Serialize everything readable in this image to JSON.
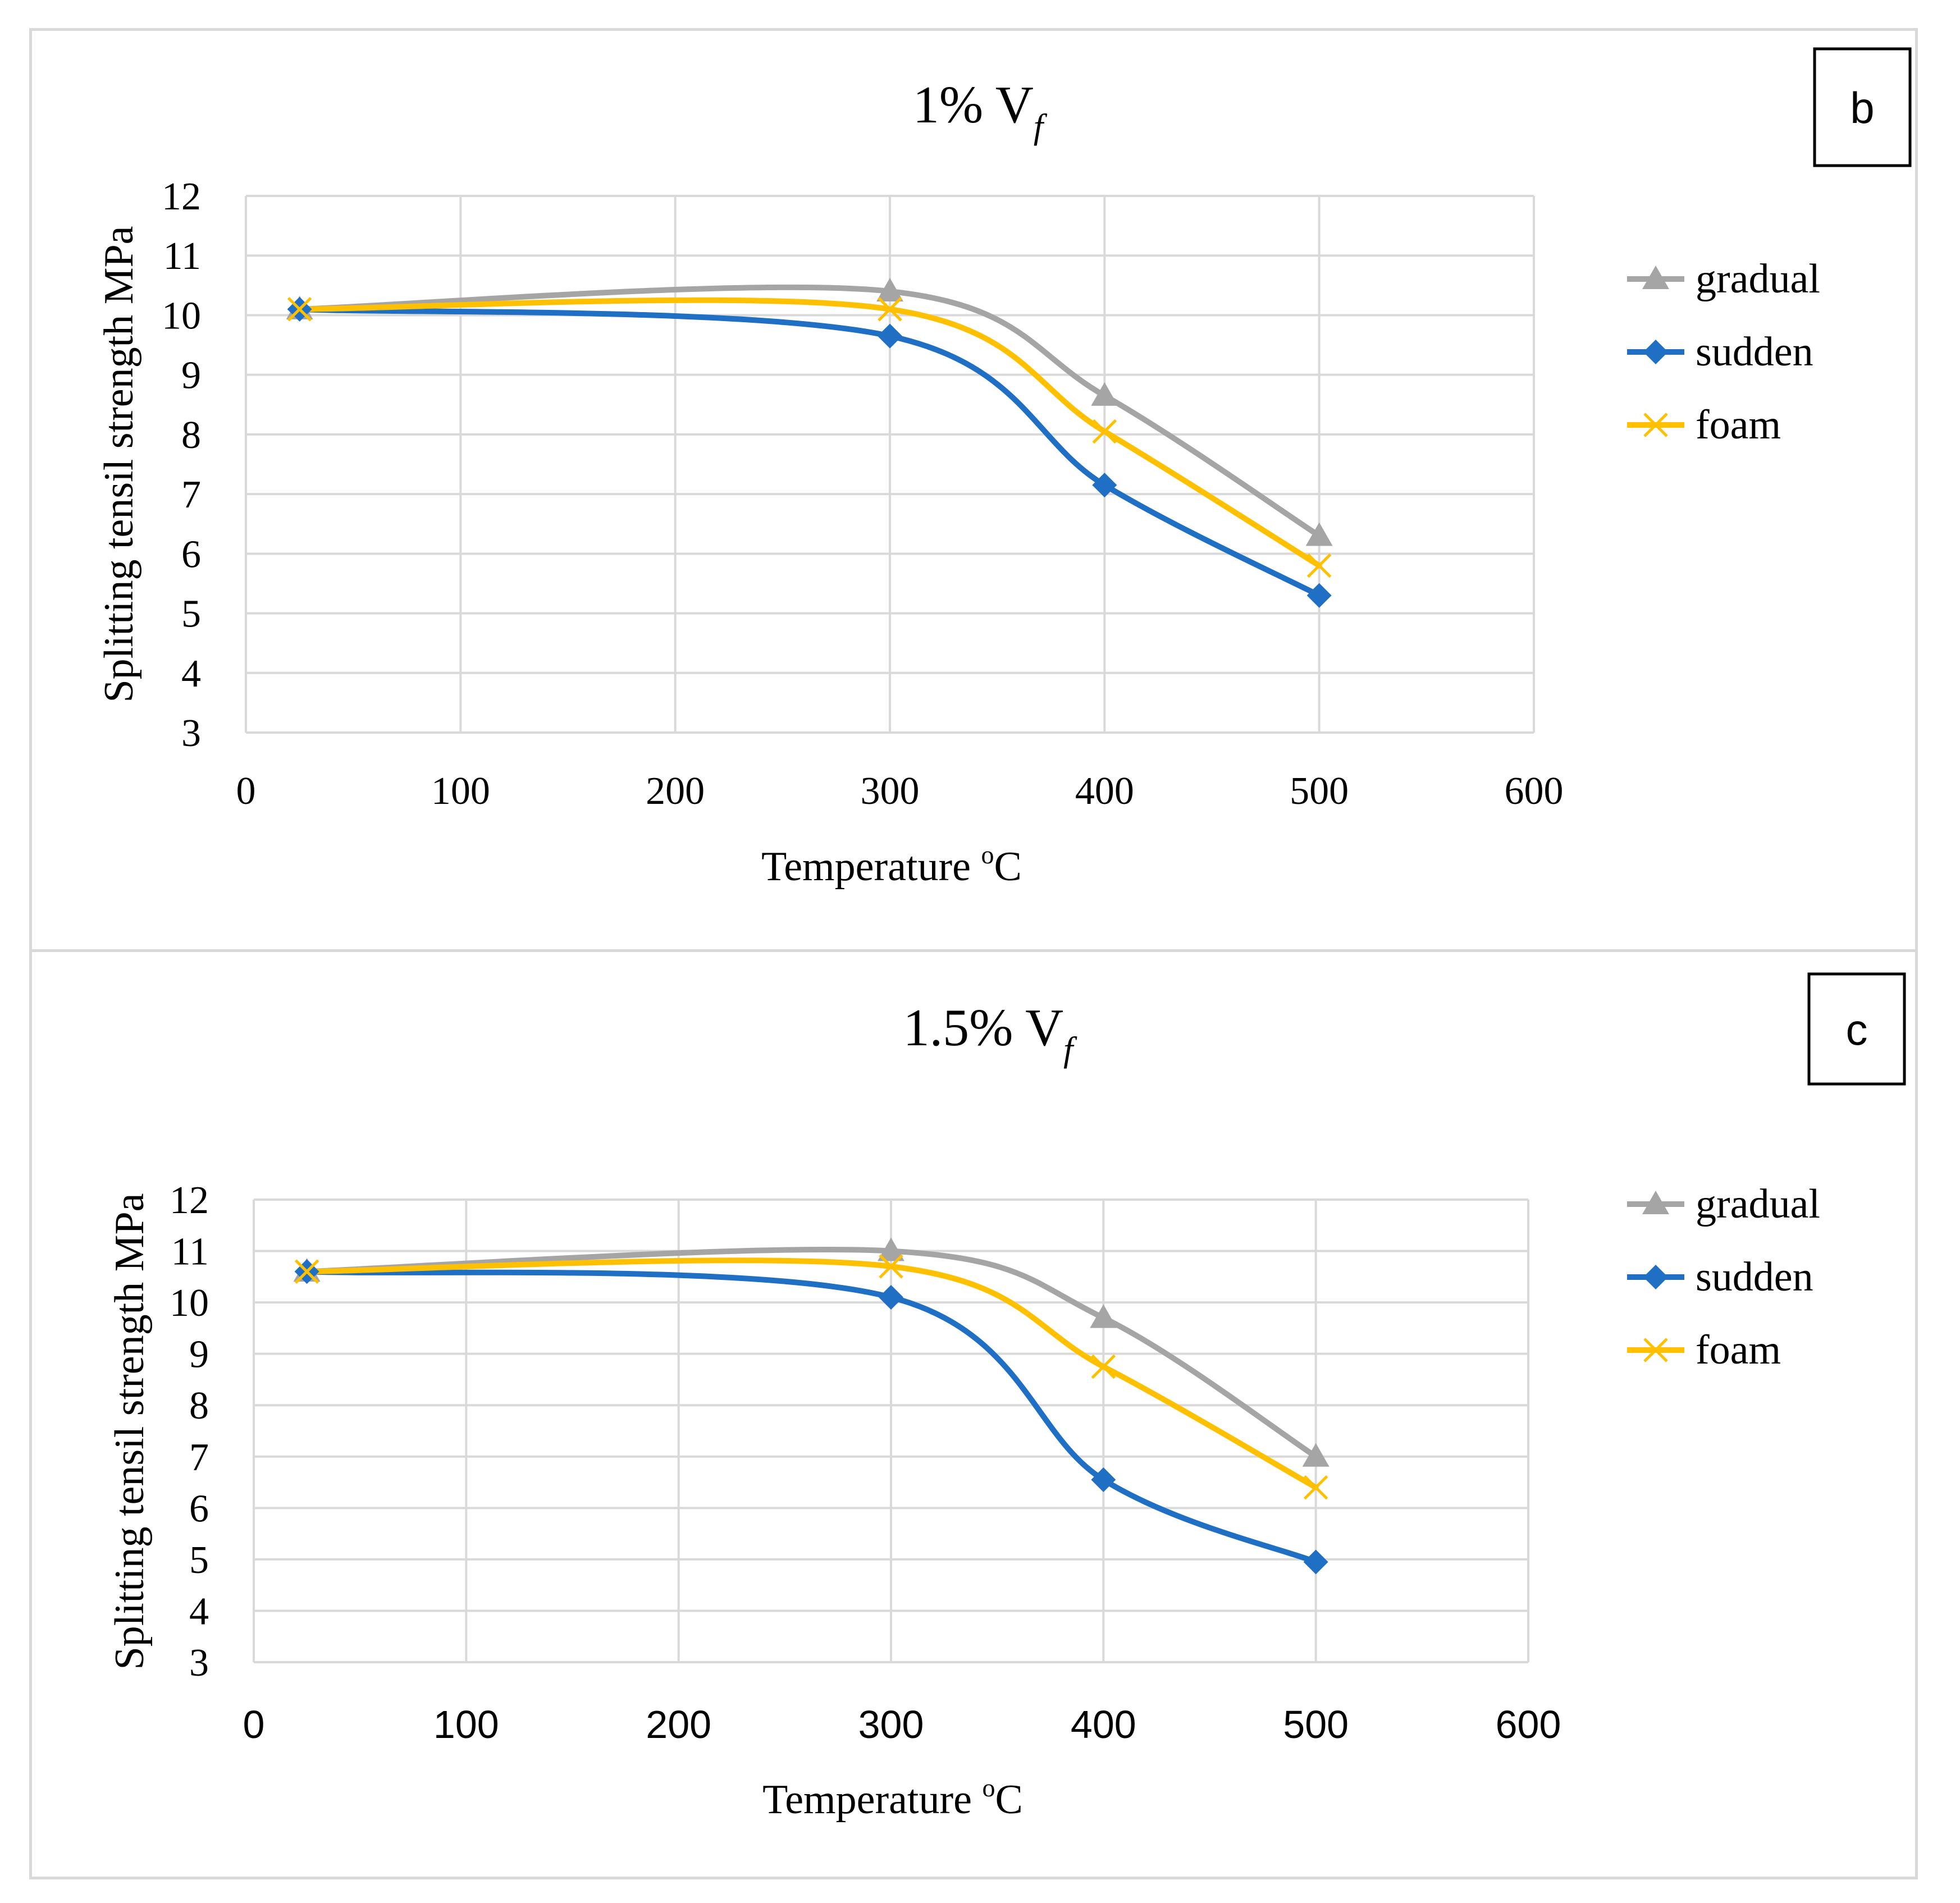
{
  "colors": {
    "gradual": "#a5a5a5",
    "sudden": "#1f6fc5",
    "foam": "#ffc000",
    "grid": "#d9d9d9"
  },
  "chart_data": [
    {
      "type": "line",
      "panel_label": "b",
      "title": "1% V",
      "title_sub": "f",
      "xlabel": "Temperature",
      "xlabel_sup": "o",
      "xlabel_unit": "C",
      "ylabel": "Splitting tensil strength MPa",
      "xlim": [
        0,
        600
      ],
      "ylim": [
        3,
        12
      ],
      "xticks": [
        0,
        100,
        200,
        300,
        400,
        500,
        600
      ],
      "yticks": [
        3,
        4,
        5,
        6,
        7,
        8,
        9,
        10,
        11,
        12
      ],
      "tick_font": "serif",
      "x": [
        25,
        300,
        400,
        500
      ],
      "series": [
        {
          "name": "gradual",
          "marker": "triangle",
          "values": [
            10.1,
            10.4,
            8.65,
            6.3
          ]
        },
        {
          "name": "sudden",
          "marker": "diamond",
          "values": [
            10.1,
            9.65,
            7.15,
            5.3
          ]
        },
        {
          "name": "foam",
          "marker": "x",
          "values": [
            10.1,
            10.1,
            8.05,
            5.8
          ]
        }
      ]
    },
    {
      "type": "line",
      "panel_label": "c",
      "title": "1.5% V",
      "title_sub": "f",
      "xlabel": "Temperature",
      "xlabel_sup": "o",
      "xlabel_unit": "C",
      "ylabel": "Splitting tensil strength MPa",
      "xlim": [
        0,
        600
      ],
      "ylim": [
        3,
        12
      ],
      "xticks": [
        0,
        100,
        200,
        300,
        400,
        500,
        600
      ],
      "yticks": [
        3,
        4,
        5,
        6,
        7,
        8,
        9,
        10,
        11,
        12
      ],
      "tick_font": "sans",
      "x": [
        25,
        300,
        400,
        500
      ],
      "series": [
        {
          "name": "gradual",
          "marker": "triangle",
          "values": [
            10.6,
            11.0,
            9.7,
            7.0
          ]
        },
        {
          "name": "sudden",
          "marker": "diamond",
          "values": [
            10.6,
            10.1,
            6.55,
            4.95
          ]
        },
        {
          "name": "foam",
          "marker": "x",
          "values": [
            10.6,
            10.7,
            8.75,
            6.4
          ]
        }
      ]
    }
  ]
}
